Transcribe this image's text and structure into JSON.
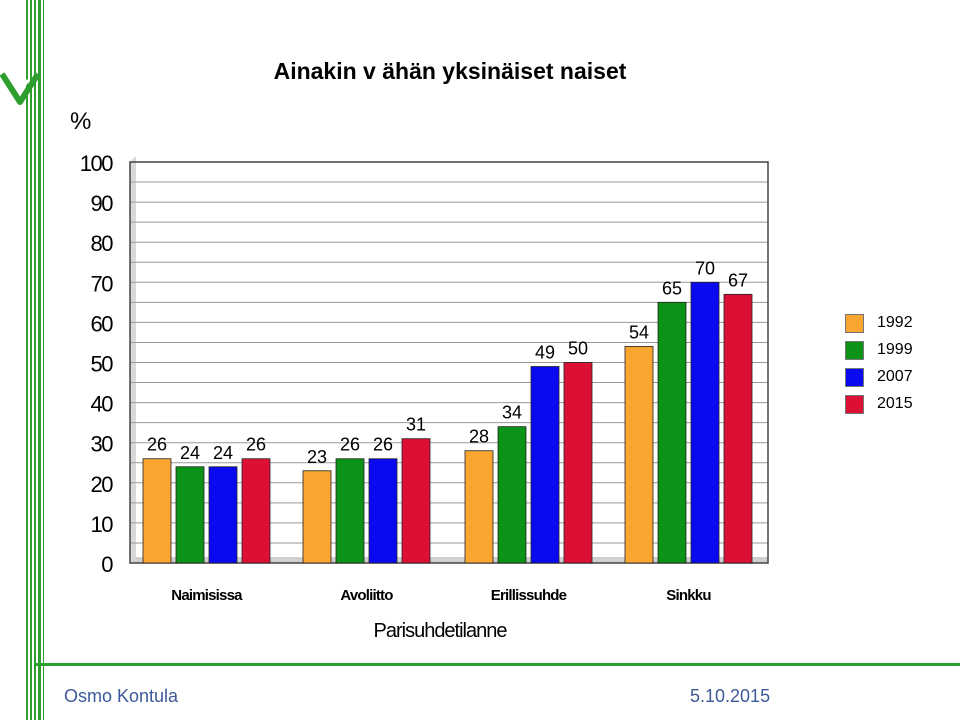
{
  "chart_data": {
    "type": "bar",
    "title": "Ainakin v ähän yksinäiset naiset",
    "ylabel": "%",
    "xlabel": "Parisuhdetilanne",
    "categories": [
      "Naimisissa",
      "Avoliitto",
      "Erillissuhde",
      "Sinkku"
    ],
    "series": [
      {
        "name": "1992",
        "color": "#f9a630",
        "values": [
          26,
          23,
          28,
          54
        ]
      },
      {
        "name": "1999",
        "color": "#0a9317",
        "values": [
          24,
          26,
          34,
          65
        ]
      },
      {
        "name": "2007",
        "color": "#0a0af0",
        "values": [
          24,
          26,
          49,
          70
        ]
      },
      {
        "name": "2015",
        "color": "#dc1034",
        "values": [
          26,
          31,
          50,
          67
        ]
      }
    ],
    "ylim": [
      0,
      100
    ],
    "yticks": [
      "0",
      "10",
      "20",
      "30",
      "40",
      "50",
      "60",
      "70",
      "80",
      "90",
      "100"
    ],
    "grid": true,
    "legend_position": "right"
  },
  "footer": {
    "author": "Osmo Kontula",
    "date": "5.10.2015"
  },
  "colors": {
    "frame_green": "#2e9e2e",
    "footer_text": "#3c5a9a"
  },
  "icons": {
    "logo": "leaf-logo-icon"
  }
}
